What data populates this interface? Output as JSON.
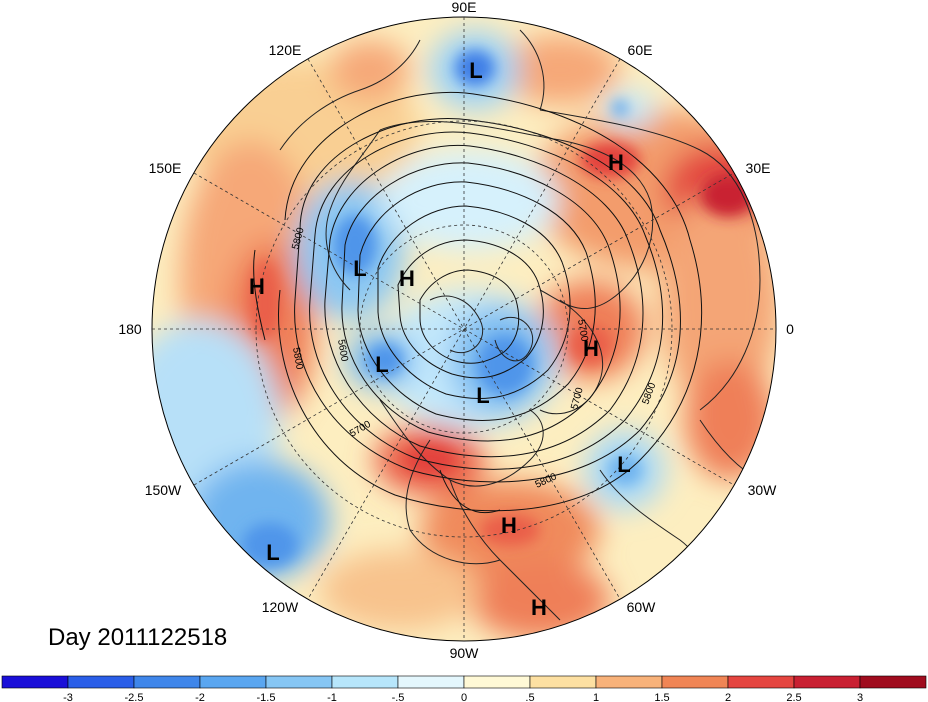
{
  "map": {
    "date_label": "Day 2011122518",
    "longitude_labels": [
      "90E",
      "120E",
      "60E",
      "150E",
      "30E",
      "180",
      "0",
      "150W",
      "30W",
      "120W",
      "60W",
      "90W"
    ],
    "contour_labels": [
      "5800",
      "5600",
      "5800",
      "5700",
      "5800",
      "5800",
      "5700",
      "5700"
    ],
    "pressure_centers": [
      {
        "type": "L"
      },
      {
        "type": "H"
      },
      {
        "type": "L"
      },
      {
        "type": "H"
      },
      {
        "type": "H"
      },
      {
        "type": "L"
      },
      {
        "type": "H"
      },
      {
        "type": "L"
      },
      {
        "type": "L"
      },
      {
        "type": "H"
      },
      {
        "type": "L"
      },
      {
        "type": "H"
      }
    ],
    "colorbar": {
      "ticks": [
        "-3",
        "-2.5",
        "-2",
        "-1.5",
        "-1",
        "-.5",
        "0",
        ".5",
        "1",
        "1.5",
        "2",
        "2.5",
        "3"
      ],
      "colors": [
        "#1a0fd8",
        "#2a5ee8",
        "#3f86ea",
        "#5aa6f0",
        "#86c6f4",
        "#b7e6fb",
        "#e4f7fd",
        "#fff9d6",
        "#fde0a2",
        "#f8b27a",
        "#f08555",
        "#e54540",
        "#c92032",
        "#a00c1e"
      ]
    }
  }
}
